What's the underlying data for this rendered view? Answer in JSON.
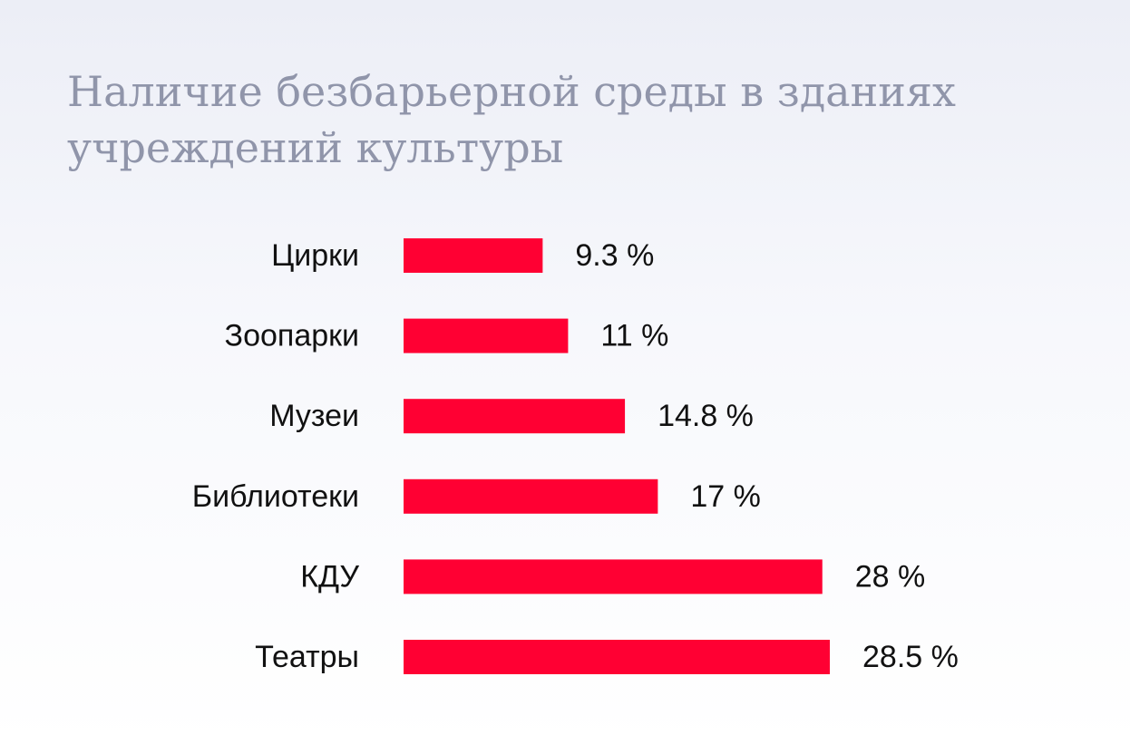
{
  "chart_data": {
    "type": "bar",
    "orientation": "horizontal",
    "title": "Наличие безбарьерной среды в зданиях учреждений культуры",
    "categories": [
      "Цирки",
      "Зоопарки",
      "Музеи",
      "Библиотеки",
      "КДУ",
      "Театры"
    ],
    "values": [
      9.3,
      11,
      14.8,
      17,
      28,
      28.5
    ],
    "value_labels": [
      "9.3 %",
      "11 %",
      "14.8 %",
      "17 %",
      "28 %",
      "28.5 %"
    ],
    "unit": "%",
    "xlim": [
      0,
      28.5
    ],
    "bar_color": "#ff0033",
    "grid": false,
    "legend": "none"
  }
}
